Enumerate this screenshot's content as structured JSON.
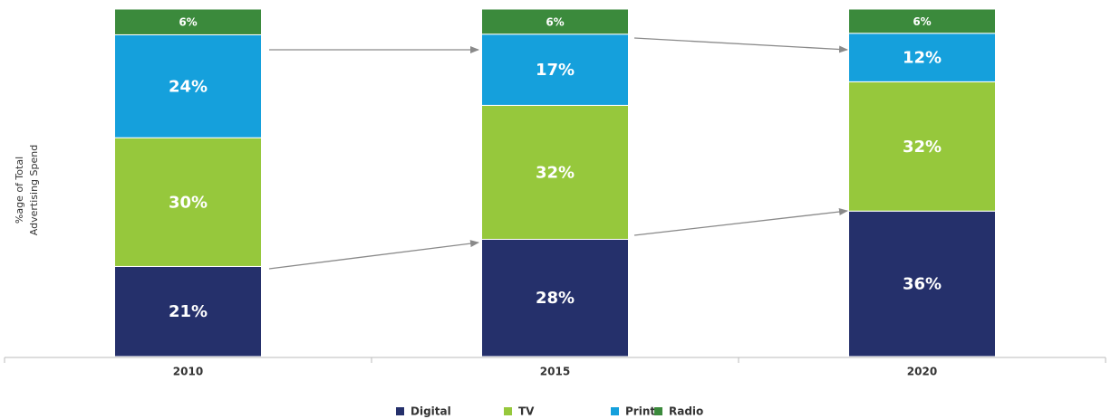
{
  "chart_data": {
    "type": "stacked_bar",
    "y_label": [
      "%age of Total",
      "Advertising Spend"
    ],
    "categories": [
      "2010",
      "2015",
      "2020"
    ],
    "series": [
      {
        "name": "Digital",
        "color": "#25306b",
        "values": [
          21,
          28,
          36
        ],
        "value_labels": [
          "21%",
          "28%",
          "36%"
        ]
      },
      {
        "name": "TV",
        "color": "#96c83c",
        "values": [
          30,
          32,
          32
        ],
        "value_labels": [
          "30%",
          "32%",
          "32%"
        ]
      },
      {
        "name": "Print",
        "color": "#15a0dc",
        "values": [
          24,
          17,
          12
        ],
        "value_labels": [
          "24%",
          "17%",
          "12%"
        ]
      },
      {
        "name": "Radio",
        "color": "#3b8a3c",
        "values": [
          6,
          6,
          6
        ],
        "value_labels": [
          "6%",
          "6%",
          "6%"
        ]
      }
    ],
    "legend": "bottom"
  }
}
